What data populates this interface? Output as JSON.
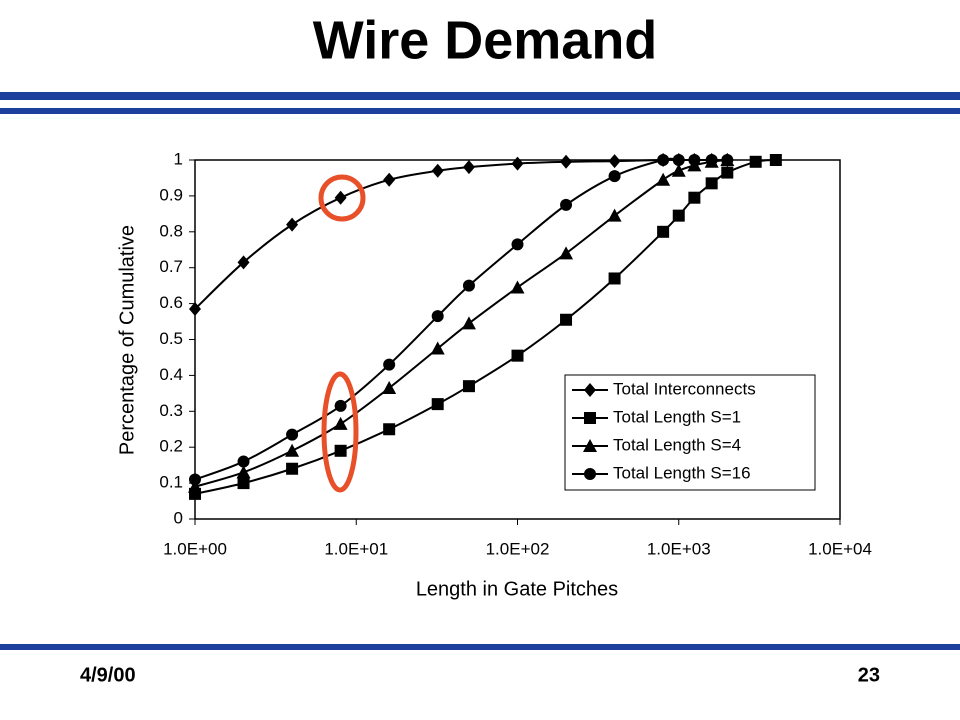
{
  "header": {
    "title": "Wire Demand"
  },
  "chart_data": {
    "type": "line",
    "x_label": "Length in Gate Pitches",
    "y_label": "Percentage of Cumulative",
    "x": [
      1,
      2,
      4,
      8,
      16,
      32,
      50,
      100,
      200,
      400,
      800,
      1000,
      1250,
      1600,
      2000,
      3000,
      4000
    ],
    "xlog": true,
    "xlim": [
      1,
      10000
    ],
    "xticks": [
      {
        "value": 1,
        "label": "1.0E+00"
      },
      {
        "value": 10,
        "label": "1.0E+01"
      },
      {
        "value": 100,
        "label": "1.0E+02"
      },
      {
        "value": 1000,
        "label": "1.0E+03"
      },
      {
        "value": 10000,
        "label": "1.0E+04"
      }
    ],
    "ylim": [
      0,
      1
    ],
    "yticks": [
      0,
      0.1,
      0.2,
      0.3,
      0.4,
      0.5,
      0.6,
      0.7,
      0.8,
      0.9,
      1
    ],
    "legend": "lower right",
    "series": [
      {
        "name": "Total Interconnects",
        "color": "#000000",
        "marker": "diamond",
        "values": [
          0.585,
          0.715,
          0.82,
          0.895,
          0.945,
          0.97,
          0.98,
          0.99,
          0.995,
          0.997,
          1,
          1,
          1,
          1,
          1,
          null,
          null
        ]
      },
      {
        "name": "Total Length S=1",
        "color": "#000000",
        "marker": "square",
        "values": [
          0.07,
          0.1,
          0.14,
          0.19,
          0.25,
          0.32,
          0.37,
          0.455,
          0.555,
          0.67,
          0.8,
          0.845,
          0.895,
          0.935,
          0.965,
          0.995,
          1
        ]
      },
      {
        "name": "Total Length S=4",
        "color": "#000000",
        "marker": "triangle",
        "values": [
          0.09,
          0.13,
          0.19,
          0.265,
          0.365,
          0.475,
          0.545,
          0.645,
          0.74,
          0.845,
          0.945,
          0.97,
          0.985,
          0.995,
          1,
          null,
          null
        ]
      },
      {
        "name": "Total Length S=16",
        "color": "#000000",
        "marker": "circle",
        "values": [
          0.11,
          0.16,
          0.235,
          0.315,
          0.43,
          0.565,
          0.65,
          0.765,
          0.875,
          0.955,
          1,
          1,
          1,
          1,
          1,
          null,
          null
        ]
      }
    ]
  },
  "footer": {
    "date": "4/9/00",
    "page": "23"
  }
}
